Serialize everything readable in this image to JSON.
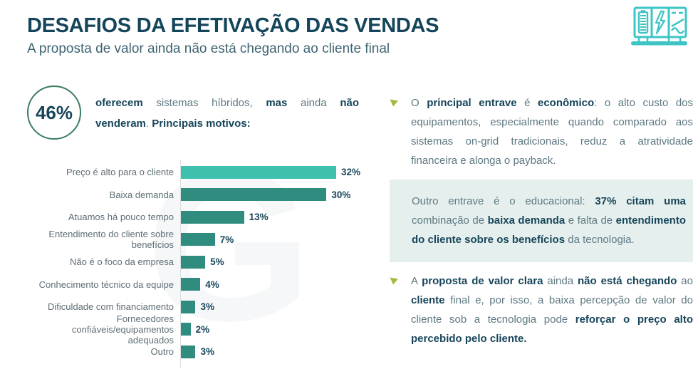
{
  "header": {
    "title": "DESAFIOS DA EFETIVAÇÃO DAS VENDAS",
    "subtitle": "A proposta de valor ainda não está chegando ao cliente final",
    "corner_icon": "hybrid-inverter-battery-icon"
  },
  "colors": {
    "title_color": "#14455A",
    "subtitle_color": "#3F6372",
    "body_text": "#5E7882",
    "bold_text": "#17455A",
    "label_text": "#5E6E77",
    "bar_accent": "#3FBFAD",
    "bar_main": "#2F8C7F",
    "axis_color": "#D9DEDF",
    "box_bg": "#E5F0EE",
    "arrow_color": "#A8B83D",
    "circle_stroke": "#3A7D60",
    "icon_color": "#3EC4C4"
  },
  "watermark": "G",
  "stat": {
    "value": "46%",
    "text_segments": [
      {
        "t": "oferecem",
        "b": true
      },
      {
        "t": " sistemas híbridos, ",
        "b": false
      },
      {
        "t": "mas",
        "b": true
      },
      {
        "t": " ainda ",
        "b": false
      },
      {
        "t": "não venderam",
        "b": true
      },
      {
        "t": ". ",
        "b": false
      },
      {
        "t": "Principais motivos:",
        "b": true
      }
    ]
  },
  "chart_data": {
    "type": "bar",
    "orientation": "horizontal",
    "title": "Principais motivos",
    "xlabel": "",
    "ylabel": "",
    "xlim": [
      0,
      34
    ],
    "grid": false,
    "legend": false,
    "categories": [
      "Preço é alto para o cliente",
      "Baixa demanda",
      "Atuamos há pouco tempo",
      "Entendimento do cliente sobre benefícios",
      "Não é o foco da empresa",
      "Conhecimento técnico da equipe",
      "Dificuldade com financiamento",
      "Fornecedores confiáveis/equipamentos adequados",
      "Outro"
    ],
    "values": [
      32,
      30,
      13,
      7,
      5,
      4,
      3,
      2,
      3
    ],
    "value_labels": [
      "32%",
      "30%",
      "13%",
      "7%",
      "5%",
      "4%",
      "3%",
      "2%",
      "3%"
    ],
    "highlight_index": 0
  },
  "right_panel": {
    "bullet1_segments": [
      {
        "t": "O ",
        "b": false
      },
      {
        "t": "principal entrave",
        "b": true
      },
      {
        "t": " é ",
        "b": false
      },
      {
        "t": "econômico",
        "b": true
      },
      {
        "t": ": o alto custo dos equipamentos, especialmente quando comparado aos sistemas on-grid tradicionais, reduz a atratividade financeira e alonga o payback.",
        "b": false
      }
    ],
    "box_segments": [
      {
        "t": "Outro entrave é o educacional: ",
        "b": false
      },
      {
        "t": "37% citam uma",
        "b": true
      },
      {
        "t": " combinação de ",
        "b": false
      },
      {
        "t": "baixa demanda",
        "b": true
      },
      {
        "t": " e falta de ",
        "b": false
      },
      {
        "t": "entendimento do cliente sobre os benefícios",
        "b": true
      },
      {
        "t": " da tecnologia.",
        "b": false
      }
    ],
    "bullet2_segments": [
      {
        "t": "A ",
        "b": false
      },
      {
        "t": "proposta de valor clara",
        "b": true
      },
      {
        "t": " ainda ",
        "b": false
      },
      {
        "t": "não está chegando",
        "b": true
      },
      {
        "t": " ao ",
        "b": false
      },
      {
        "t": "cliente",
        "b": true
      },
      {
        "t": " final e, por isso, a baixa percepção de valor do cliente sob a tecnologia pode ",
        "b": false
      },
      {
        "t": "reforçar o preço alto percebido pelo cliente.",
        "b": true
      }
    ]
  }
}
